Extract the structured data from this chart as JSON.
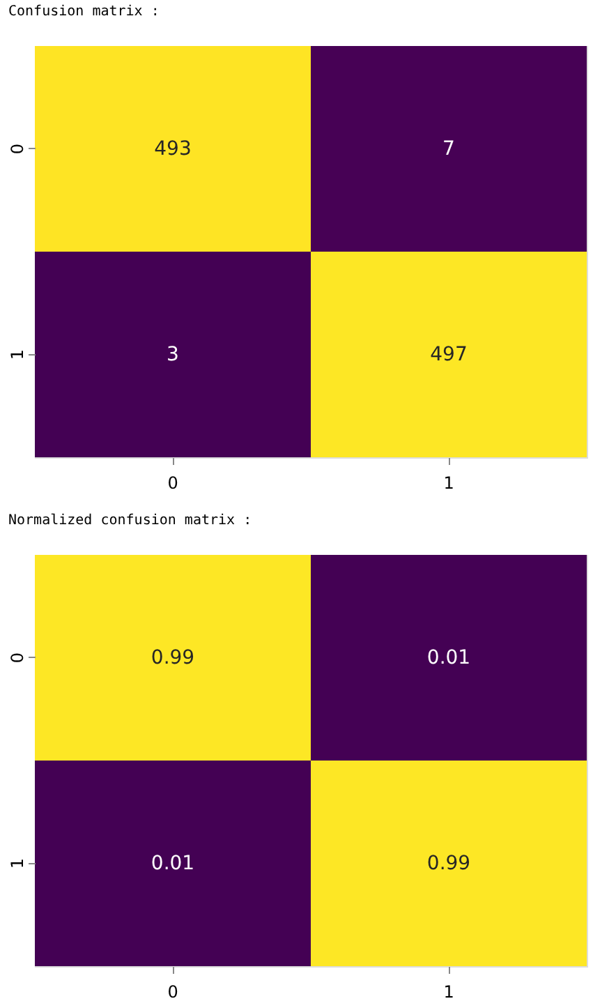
{
  "chart_data": [
    {
      "type": "heatmap",
      "title": "Confusion matrix :",
      "categories": [
        "0",
        "1"
      ],
      "y_categories": [
        "0",
        "1"
      ],
      "cells": [
        [
          493,
          7
        ],
        [
          3,
          497
        ]
      ],
      "colors": [
        "#440154",
        "#fde725"
      ],
      "data_labels": true,
      "grid": false,
      "legend": false
    },
    {
      "type": "heatmap",
      "title": "Normalized confusion matrix :",
      "categories": [
        "0",
        "1"
      ],
      "y_categories": [
        "0",
        "1"
      ],
      "cells": [
        [
          0.99,
          0.01
        ],
        [
          0.01,
          0.99
        ]
      ],
      "colors": [
        "#440154",
        "#fde725"
      ],
      "data_labels": true,
      "grid": false,
      "legend": false
    }
  ]
}
